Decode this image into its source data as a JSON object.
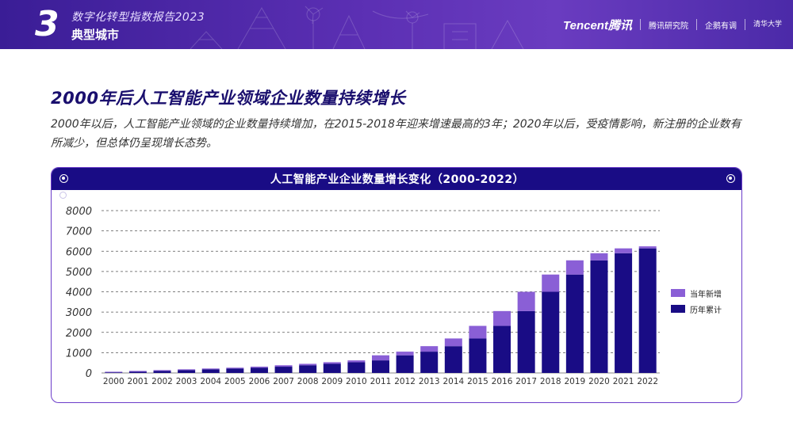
{
  "header": {
    "section_number": "3",
    "report_title": "数字化转型指数报告2023",
    "section_title": "典型城市",
    "logos": {
      "tencent": "Tencent腾讯",
      "research": "腾讯研究院",
      "partner": "企鹅有调",
      "tsinghua": "清华大学"
    }
  },
  "main": {
    "title": "2000年后人工智能产业领域企业数量持续增长",
    "description": "2000年以后，人工智能产业领域的企业数量持续增加，在2015-2018年迎来增速最高的3年；2020年以后，受疫情影响，新注册的企业数有所减少，但总体仍呈现增长态势。"
  },
  "chart_data": {
    "type": "bar",
    "stacked": true,
    "title": "人工智能产业企业数量增长变化（2000-2022）",
    "categories": [
      "2000",
      "2001",
      "2002",
      "2003",
      "2004",
      "2005",
      "2006",
      "2007",
      "2008",
      "2009",
      "2010",
      "2011",
      "2012",
      "2013",
      "2014",
      "2015",
      "2016",
      "2017",
      "2018",
      "2019",
      "2020",
      "2021",
      "2022"
    ],
    "ylim": [
      0,
      8000
    ],
    "yticks": [
      "0",
      "1000",
      "2000",
      "3000",
      "4000",
      "5000",
      "6000",
      "7000",
      "8000"
    ],
    "grid": true,
    "legend_position": "right",
    "series": [
      {
        "name": "历年累计",
        "color": "#190c85",
        "values": [
          30,
          60,
          100,
          140,
          180,
          220,
          260,
          310,
          380,
          450,
          530,
          620,
          870,
          1050,
          1320,
          1700,
          2320,
          3050,
          4000,
          4850,
          5550,
          5900,
          6140
        ]
      },
      {
        "name": "当年新增",
        "color": "#8a5fd6",
        "values": [
          30,
          40,
          40,
          40,
          40,
          40,
          50,
          70,
          70,
          80,
          90,
          250,
          180,
          270,
          380,
          620,
          730,
          950,
          850,
          700,
          350,
          240,
          100
        ]
      }
    ]
  }
}
